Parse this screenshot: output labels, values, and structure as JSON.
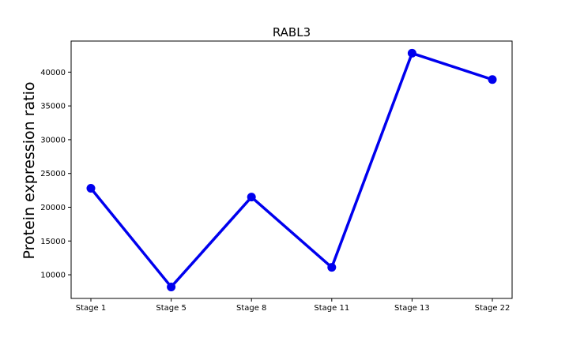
{
  "chart_data": {
    "type": "line",
    "title": "RABL3",
    "xlabel": "",
    "ylabel": "Protein expression ratio",
    "categories": [
      "Stage 1",
      "Stage 5",
      "Stage 8",
      "Stage 11",
      "Stage 13",
      "Stage 22"
    ],
    "series": [
      {
        "values": [
          22800,
          8200,
          21500,
          11100,
          42800,
          38900
        ]
      }
    ],
    "ylim": [
      6500,
      44600
    ],
    "yticks": [
      10000,
      15000,
      20000,
      25000,
      30000,
      35000,
      40000
    ],
    "grid": false,
    "colors": {
      "line": "#0000ee",
      "marker": "#0000ee",
      "axes": "#000000"
    }
  }
}
